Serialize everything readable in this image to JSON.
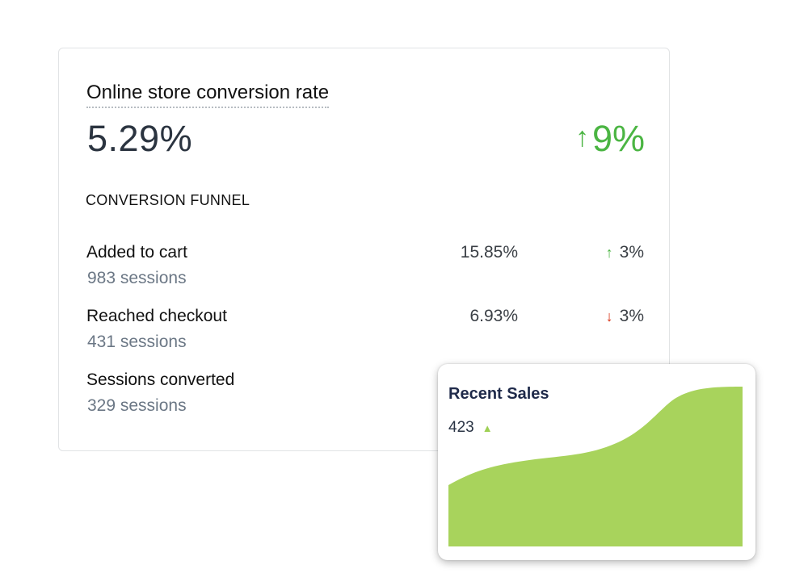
{
  "conversion_card": {
    "title": "Online store conversion rate",
    "value": "5.29%",
    "change_arrow": "↑",
    "change_value": "9%",
    "change_color": "#4bb543",
    "funnel_heading": "CONVERSION FUNNEL",
    "rows": [
      {
        "label": "Added to cart",
        "sessions": "983 sessions",
        "rate": "15.85%",
        "direction": "up",
        "arrow": "↑",
        "change": "3%"
      },
      {
        "label": "Reached checkout",
        "sessions": "431 sessions",
        "rate": "6.93%",
        "direction": "down",
        "arrow": "↓",
        "change": "3%"
      },
      {
        "label": "Sessions converted",
        "sessions": "329 sessions",
        "rate": "",
        "direction": "",
        "arrow": "",
        "change": ""
      }
    ]
  },
  "sales_card": {
    "title": "Recent Sales",
    "value": "423",
    "trend_icon": "triangle-up-icon",
    "fill_color": "#a8d35c"
  }
}
